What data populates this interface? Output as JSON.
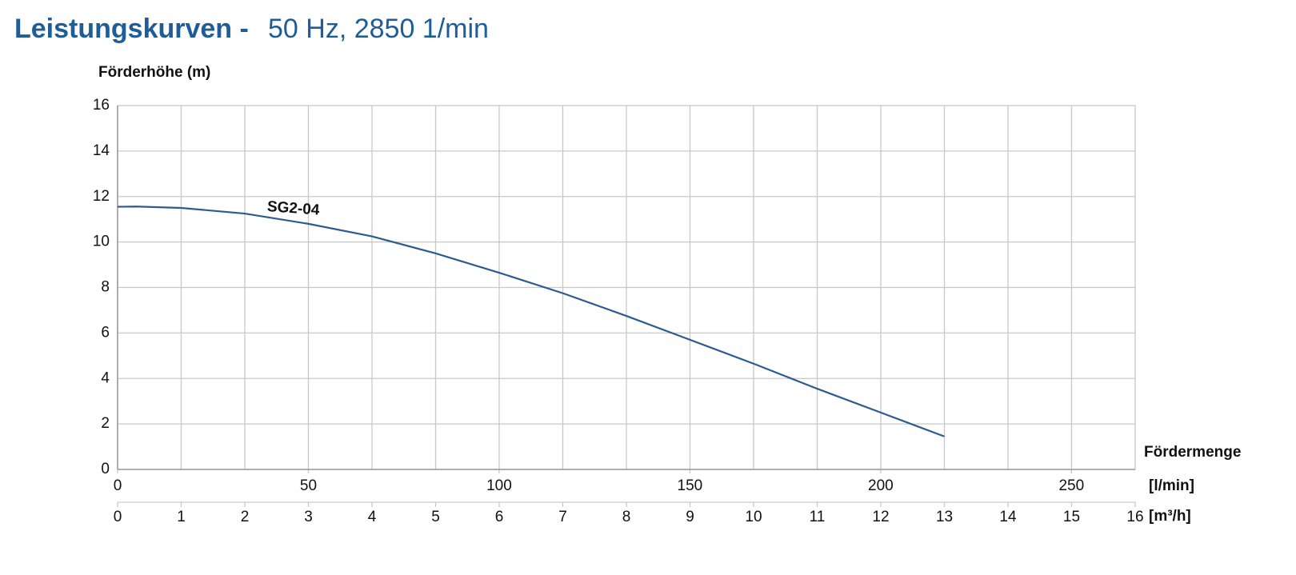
{
  "chart_data": {
    "type": "line",
    "title": "Leistungskurven -",
    "subtitle": "50 Hz, 2850 1/min",
    "ylabel": "Förderhöhe (m)",
    "xlabel": "Fördermenge",
    "xunit": "[m³/h]",
    "x2unit": "[l/min]",
    "x": [
      0,
      0.3,
      1,
      2,
      3,
      4,
      5,
      6,
      7,
      8,
      9,
      10,
      11,
      12,
      13
    ],
    "series": [
      {
        "name": "SG2-04",
        "color": "#2b5c8f",
        "values": [
          11.55,
          11.56,
          11.5,
          11.25,
          10.8,
          10.25,
          9.5,
          8.65,
          7.75,
          6.75,
          5.7,
          4.65,
          3.55,
          2.5,
          1.45
        ]
      }
    ],
    "xlim": [
      0,
      16
    ],
    "xticks": [
      0,
      1,
      2,
      3,
      4,
      5,
      6,
      7,
      8,
      9,
      10,
      11,
      12,
      13,
      14,
      15,
      16
    ],
    "x2lim": [
      0,
      266.7
    ],
    "x2ticks": [
      0,
      50,
      100,
      150,
      200,
      250
    ],
    "ylim": [
      0,
      16
    ],
    "yticks": [
      0,
      2,
      4,
      6,
      8,
      10,
      12,
      14,
      16
    ],
    "grid": true
  }
}
